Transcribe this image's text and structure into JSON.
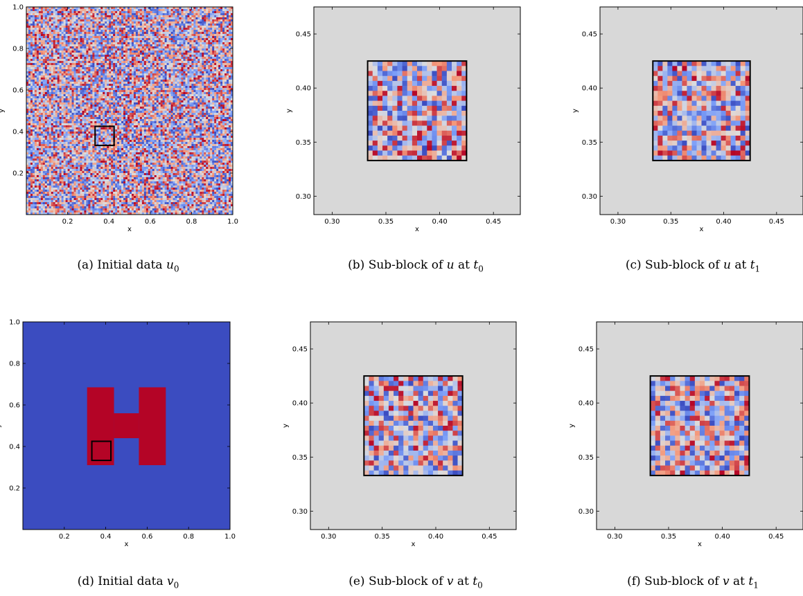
{
  "colors": {
    "cool": "#3b4cc0",
    "warm": "#b40426",
    "background": "#d8d8d8",
    "frame": "#000000"
  },
  "panels": [
    {
      "id": "a",
      "caption": {
        "prefix": "(a)",
        "text": "Initial data",
        "var": "u",
        "sub": "0"
      }
    },
    {
      "id": "b",
      "caption": {
        "prefix": "(b)",
        "text": "Sub-block of",
        "var": "u",
        "mid": "at",
        "var2": "t",
        "sub": "0"
      }
    },
    {
      "id": "c",
      "caption": {
        "prefix": "(c)",
        "text": "Sub-block of",
        "var": "u",
        "mid": "at",
        "var2": "t",
        "sub": "1"
      }
    },
    {
      "id": "d",
      "caption": {
        "prefix": "(d)",
        "text": "Initial data",
        "var": "v",
        "sub": "0"
      }
    },
    {
      "id": "e",
      "caption": {
        "prefix": "(e)",
        "text": "Sub-block of",
        "var": "v",
        "mid": "at",
        "var2": "t",
        "sub": "0"
      }
    },
    {
      "id": "f",
      "caption": {
        "prefix": "(f)",
        "text": "Sub-block of",
        "var": "v",
        "mid": "at",
        "var2": "t",
        "sub": "1"
      }
    }
  ],
  "chart_data": [
    {
      "panel": "a",
      "type": "heatmap",
      "pattern": "random noise field",
      "xlabel": "x",
      "ylabel": "y",
      "xlim": [
        0.0,
        1.0
      ],
      "ylim": [
        0.0,
        1.0
      ],
      "xticks": [
        "0.2",
        "0.4",
        "0.6",
        "0.8",
        "1.0"
      ],
      "yticks": [
        "0.2",
        "0.4",
        "0.6",
        "0.8",
        "1.0"
      ],
      "subblock_box": {
        "x0": 0.333,
        "x1": 0.425,
        "y0": 0.333,
        "y1": 0.425
      }
    },
    {
      "panel": "b",
      "type": "heatmap",
      "pattern": "sub-block of random noise field",
      "xlabel": "x",
      "ylabel": "y",
      "xlim": [
        0.283,
        0.475
      ],
      "ylim": [
        0.283,
        0.475
      ],
      "xticks": [
        "0.30",
        "0.35",
        "0.40",
        "0.45"
      ],
      "yticks": [
        "0.30",
        "0.35",
        "0.40",
        "0.45"
      ],
      "block": {
        "x0": 0.333,
        "x1": 0.425,
        "y0": 0.333,
        "y1": 0.425,
        "cells": 20
      }
    },
    {
      "panel": "c",
      "type": "heatmap",
      "pattern": "sub-block of random noise field",
      "xlabel": "x",
      "ylabel": "y",
      "xlim": [
        0.283,
        0.475
      ],
      "ylim": [
        0.283,
        0.475
      ],
      "xticks": [
        "0.30",
        "0.35",
        "0.40",
        "0.45"
      ],
      "yticks": [
        "0.30",
        "0.35",
        "0.40",
        "0.45"
      ],
      "block": {
        "x0": 0.333,
        "x1": 0.425,
        "y0": 0.333,
        "y1": 0.425,
        "cells": 20
      }
    },
    {
      "panel": "d",
      "type": "heatmap",
      "pattern": "H-shaped high region on low background",
      "xlabel": "x",
      "ylabel": "y",
      "xlim": [
        0.0,
        1.0
      ],
      "ylim": [
        0.0,
        1.0
      ],
      "xticks": [
        "0.2",
        "0.4",
        "0.6",
        "0.8",
        "1.0"
      ],
      "yticks": [
        "0.2",
        "0.4",
        "0.6",
        "0.8",
        "1.0"
      ],
      "h_shape": {
        "left_bar": {
          "x0": 0.31,
          "x1": 0.44,
          "y0": 0.31,
          "y1": 0.685
        },
        "right_bar": {
          "x0": 0.56,
          "x1": 0.69,
          "y0": 0.31,
          "y1": 0.685
        },
        "crossbar": {
          "x0": 0.44,
          "x1": 0.56,
          "y0": 0.44,
          "y1": 0.56
        }
      },
      "subblock_box": {
        "x0": 0.333,
        "x1": 0.425,
        "y0": 0.333,
        "y1": 0.425
      }
    },
    {
      "panel": "e",
      "type": "heatmap",
      "pattern": "sub-block of field",
      "xlabel": "x",
      "ylabel": "y",
      "xlim": [
        0.283,
        0.475
      ],
      "ylim": [
        0.283,
        0.475
      ],
      "xticks": [
        "0.30",
        "0.35",
        "0.40",
        "0.45"
      ],
      "yticks": [
        "0.30",
        "0.35",
        "0.40",
        "0.45"
      ],
      "block": {
        "x0": 0.333,
        "x1": 0.425,
        "y0": 0.333,
        "y1": 0.425,
        "cells": 20
      }
    },
    {
      "panel": "f",
      "type": "heatmap",
      "pattern": "sub-block of field",
      "xlabel": "x",
      "ylabel": "y",
      "xlim": [
        0.283,
        0.475
      ],
      "ylim": [
        0.283,
        0.475
      ],
      "xticks": [
        "0.30",
        "0.35",
        "0.40",
        "0.45"
      ],
      "yticks": [
        "0.30",
        "0.35",
        "0.40",
        "0.45"
      ],
      "block": {
        "x0": 0.333,
        "x1": 0.425,
        "y0": 0.333,
        "y1": 0.425,
        "cells": 20
      }
    }
  ]
}
